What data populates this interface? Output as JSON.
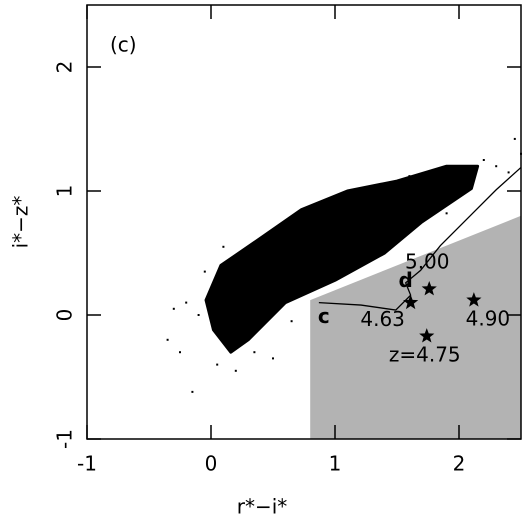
{
  "chart_data": {
    "type": "scatter",
    "panel_label": "(c)",
    "x_label": "r*−i*",
    "y_label": "i*−z*",
    "xlim": [
      -1,
      2.5
    ],
    "ylim": [
      -1,
      2.5
    ],
    "xticks": [
      -1,
      0,
      1,
      2
    ],
    "yticks": [
      -1,
      0,
      1,
      2
    ],
    "region": {
      "color": "#b3b3b3",
      "x": [
        0.8,
        0.8,
        2.5,
        2.5
      ],
      "y": [
        -1,
        0.12,
        0.8,
        -1
      ]
    },
    "locus": {
      "color": "#000000",
      "x": [
        -0.04,
        0.08,
        0.4,
        0.73,
        1.1,
        1.5,
        1.9,
        2.15,
        2.1,
        1.7,
        1.4,
        1.0,
        0.6,
        0.3,
        0.16,
        0.02
      ],
      "y": [
        0.12,
        0.4,
        0.62,
        0.85,
        1.0,
        1.08,
        1.2,
        1.2,
        1.02,
        0.75,
        0.5,
        0.28,
        0.1,
        -0.2,
        -0.3,
        -0.12
      ]
    },
    "series": [
      {
        "color": "#000000",
        "x": [
          -0.15,
          -0.25,
          0.2,
          2.5,
          2.45,
          0.5,
          -0.1,
          2.3,
          -0.35,
          1.6,
          -0.2,
          0.05,
          0.35,
          2.4,
          2.2,
          -0.05,
          0.1,
          1.9,
          0.65,
          -0.3
        ],
        "y": [
          -0.62,
          -0.3,
          -0.45,
          1.3,
          1.42,
          -0.35,
          0.0,
          1.2,
          -0.2,
          1.12,
          0.1,
          -0.4,
          -0.3,
          1.15,
          1.25,
          0.35,
          0.55,
          0.82,
          -0.05,
          0.05
        ]
      }
    ],
    "track": {
      "color": "#000000",
      "x": [
        0.87,
        1.21,
        1.49,
        1.61,
        1.57,
        1.69,
        1.85,
        2.1,
        2.3,
        2.5
      ],
      "y": [
        0.1,
        0.08,
        0.04,
        0.16,
        0.26,
        0.36,
        0.56,
        0.81,
        1.01,
        1.19
      ]
    },
    "track_labels": [
      {
        "text": "c",
        "x": 0.91,
        "y": -0.02
      },
      {
        "text": "d",
        "x": 1.57,
        "y": 0.27
      }
    ],
    "quasars": {
      "color": "#000000",
      "x": [
        1.76,
        1.61,
        2.12,
        1.74
      ],
      "y": [
        0.21,
        0.1,
        0.12,
        -0.17
      ],
      "labels": [
        "5.00",
        "4.63",
        "4.90",
        "z=4.75"
      ]
    }
  }
}
